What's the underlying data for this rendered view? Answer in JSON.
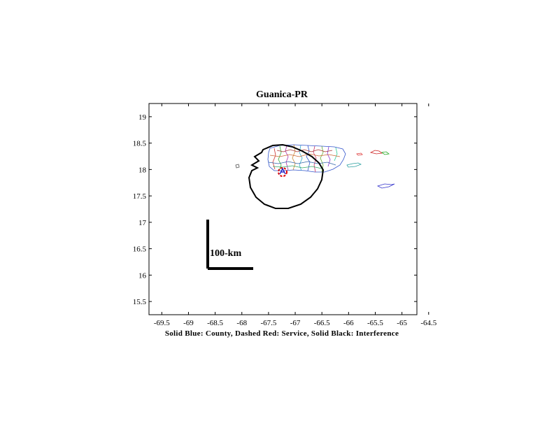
{
  "title": "Guanica-PR",
  "caption": "Solid Blue: County, Dashed Red: Service, Solid Black: Interference",
  "scale_label": "100-km",
  "axes": {
    "x_ticks": [
      "-69.5",
      "-69",
      "-68.5",
      "-68",
      "-67.5",
      "-67",
      "-66.5",
      "-66",
      "-65.5",
      "-65",
      "-64.5"
    ],
    "x_values": [
      -69.5,
      -69,
      -68.5,
      -68,
      -67.5,
      -67,
      -66.5,
      -66,
      -65.5,
      -65,
      -64.5
    ],
    "y_ticks": [
      "19",
      "18.5",
      "18",
      "17.5",
      "17",
      "16.5",
      "16",
      "15.5"
    ],
    "y_values": [
      19,
      18.5,
      18,
      17.5,
      17,
      16.5,
      16,
      15.5
    ],
    "xlim": [
      -69.74,
      -64.72
    ],
    "ylim": [
      15.25,
      19.25
    ]
  },
  "colors": {
    "interference": "#000000",
    "service": "#e00000",
    "station": "#1010c0",
    "frame": "#000000"
  },
  "station": {
    "lon": -66.9,
    "lat": 17.97
  },
  "service_contour": {
    "radius_deg": 0.09
  },
  "interference_contour": {
    "center_lon": -66.88,
    "center_lat": 17.92,
    "radius_deg": 0.7
  }
}
